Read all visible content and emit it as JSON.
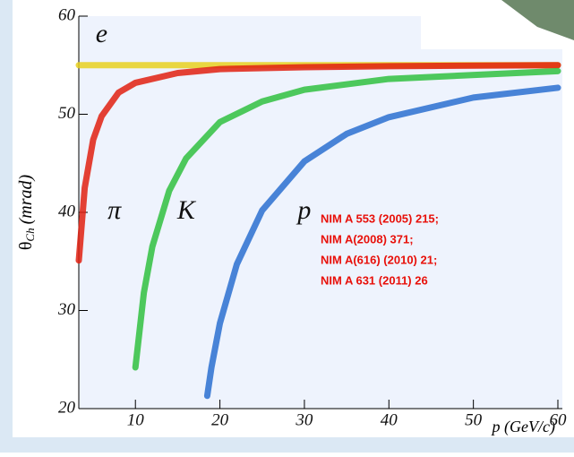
{
  "chart_data": {
    "type": "line",
    "y_label": {
      "symbol": "θ",
      "subscript": "Ch",
      "unit": "(mrad)"
    },
    "x_label": "p (GeV/c)",
    "xlim": [
      3.3,
      60
    ],
    "xticks": [
      10,
      20,
      30,
      40,
      50,
      60
    ],
    "ylim": [
      20,
      60
    ],
    "yticks": [
      20,
      30,
      40,
      50,
      60
    ],
    "series": [
      {
        "name": "e",
        "color": "#e8d020",
        "x": [
          3.3,
          10,
          20,
          30,
          40,
          50,
          60
        ],
        "values": [
          55,
          55,
          55,
          55,
          55,
          55,
          55
        ]
      },
      {
        "name": "π",
        "color": "#e02010",
        "x": [
          3.3,
          4,
          5,
          6,
          8,
          10,
          15,
          20,
          30,
          40,
          60
        ],
        "values": [
          35.1,
          42.5,
          47.4,
          49.8,
          52.2,
          53.2,
          54.2,
          54.6,
          54.8,
          54.9,
          55.0
        ]
      },
      {
        "name": "K",
        "color": "#30c040",
        "x": [
          10,
          11,
          12,
          14,
          16,
          20,
          25,
          30,
          40,
          60
        ],
        "values": [
          24.2,
          31.8,
          36.5,
          42.2,
          45.5,
          49.2,
          51.3,
          52.5,
          53.6,
          54.4
        ]
      },
      {
        "name": "p",
        "color": "#2a6fd0",
        "x": [
          18.5,
          19,
          20,
          22,
          25,
          30,
          35,
          40,
          50,
          60
        ],
        "values": [
          21.3,
          24.2,
          28.7,
          34.7,
          40.2,
          45.2,
          48.0,
          49.7,
          51.7,
          52.7
        ]
      }
    ],
    "annotations": [
      "NIM A 553 (2005) 215;",
      "NIM A(2008) 371;",
      "NIM A(616) (2010) 21;",
      "NIM A 631 (2011) 26"
    ]
  }
}
